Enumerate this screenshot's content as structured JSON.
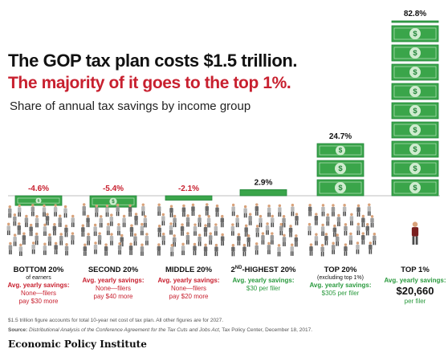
{
  "chart_data": {
    "type": "bar",
    "title": "The GOP tax plan costs $1.5 trillion.",
    "subtitle": "The majority of it goes to the top 1%.",
    "ylabel": "",
    "xlabel": "",
    "description": "Share of annual tax savings by income group",
    "ylim": [
      -10,
      85
    ],
    "categories": [
      {
        "name": "BOTTOM 20%",
        "sup": "",
        "suffix": "",
        "sub": "of earners",
        "label_text": "-4.6%",
        "value": -4.6,
        "savings_label": "Avg. yearly savings:",
        "savings_line1": "None—filers",
        "savings_line2": "pay $30 more",
        "big_value": "",
        "per": ""
      },
      {
        "name": "SECOND 20%",
        "sup": "",
        "suffix": "",
        "sub": "",
        "label_text": "-5.4%",
        "value": -5.4,
        "savings_label": "Avg. yearly savings:",
        "savings_line1": "None—filers",
        "savings_line2": "pay $40 more",
        "big_value": "",
        "per": ""
      },
      {
        "name": "MIDDLE 20%",
        "sup": "",
        "suffix": "",
        "sub": "",
        "label_text": "-2.1%",
        "value": -2.1,
        "savings_label": "Avg. yearly savings:",
        "savings_line1": "None—filers",
        "savings_line2": "pay $20 more",
        "big_value": "",
        "per": ""
      },
      {
        "name": "2",
        "sup": "ND",
        "suffix": "-HIGHEST 20%",
        "sub": "",
        "label_text": "2.9%",
        "value": 2.9,
        "savings_label": "Avg. yearly savings:",
        "savings_line1": "$30 per filer",
        "savings_line2": "",
        "big_value": "",
        "per": ""
      },
      {
        "name": "TOP 20%",
        "sup": "",
        "suffix": "",
        "sub": "(excluding top 1%)",
        "label_text": "24.7%",
        "value": 24.7,
        "savings_label": "Avg. yearly savings:",
        "savings_line1": "$305 per filer",
        "savings_line2": "",
        "big_value": "",
        "per": ""
      },
      {
        "name": "TOP 1%",
        "sup": "",
        "suffix": "",
        "sub": "",
        "label_text": "82.8%",
        "value": 82.8,
        "savings_label": "Avg. yearly savings:",
        "savings_line1": "",
        "savings_line2": "",
        "big_value": "$20,660",
        "per": "per filer"
      }
    ],
    "colors": {
      "bill": "#3aa54a",
      "bill_dark": "#23843a",
      "bill_light": "#cfeccf",
      "negative": "#c8202f",
      "positive": "#2a9a3e",
      "person": "#9a9a9a",
      "person_head": "#d9a27a",
      "top_person": "#7a1f1f"
    },
    "people_per_group": 30
  },
  "footnote": "$1.5 trillion figure accounts for total 10-year net cost of tax plan. All other figures are for 2027.",
  "source": {
    "label": "Source:",
    "title": "Distributional Analysis of the Conference Agreement for the Tax Cuts and Jobs Act",
    "rest": ", Tax Policy Center, December 18, 2017."
  },
  "logo": "Economic Policy Institute"
}
